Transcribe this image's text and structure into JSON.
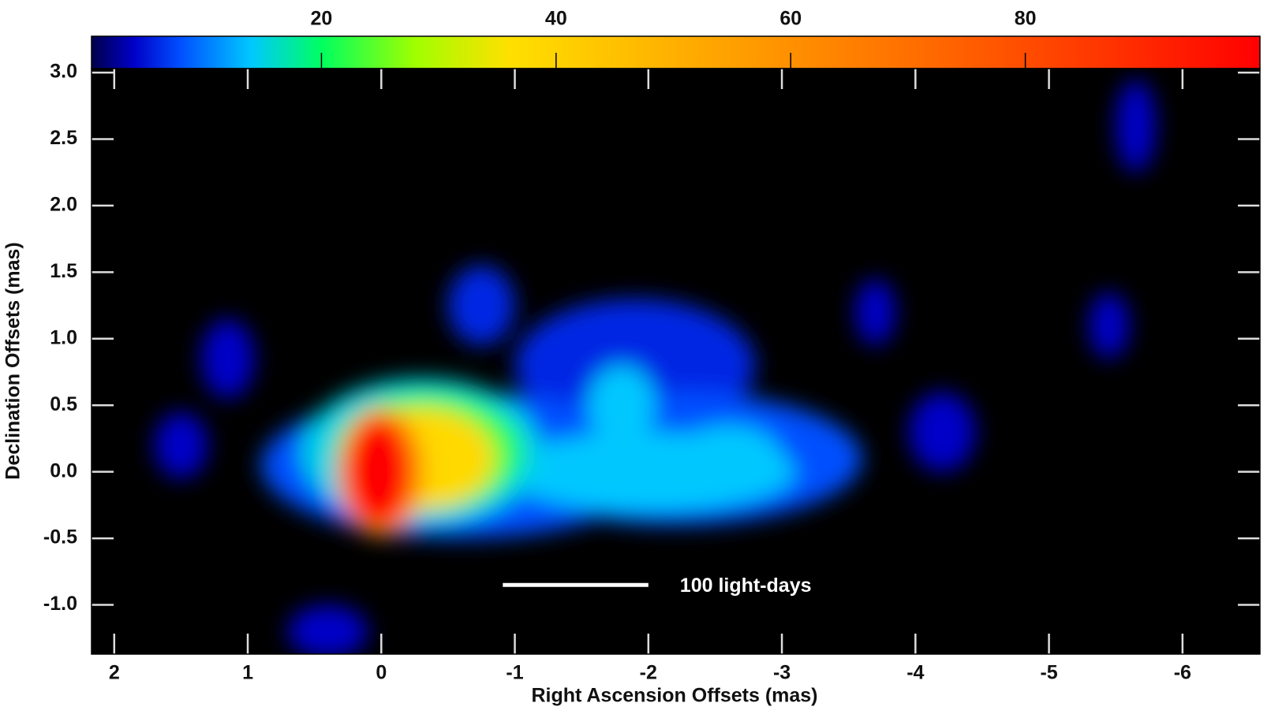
{
  "chart_data": {
    "type": "image",
    "x_label": "Right Ascension Offsets (mas)",
    "y_label": "Declination Offsets (mas)",
    "xlim": [
      2.17,
      -6.58
    ],
    "ylim": [
      -1.37,
      3.03
    ],
    "xticks": [
      2,
      1,
      0,
      -1,
      -2,
      -3,
      -4,
      -5,
      -6
    ],
    "yticks": [
      {
        "value": 3,
        "label": "3.0"
      },
      2.5,
      {
        "value": 2,
        "label": "2.0"
      },
      1.5,
      {
        "value": 1,
        "label": "1.0"
      },
      0.5,
      {
        "value": 0,
        "label": "0.0"
      },
      -0.5,
      {
        "value": -1,
        "label": "-1.0"
      }
    ],
    "clim": [
      0.4,
      100
    ],
    "cticks": [
      20,
      40,
      60,
      80
    ],
    "colormap": [
      {
        "value": 0.4,
        "color": "#00004a"
      },
      {
        "value": 4,
        "color": "#0000c8"
      },
      {
        "value": 8,
        "color": "#0050ff"
      },
      {
        "value": 14,
        "color": "#00c8ff"
      },
      {
        "value": 20,
        "color": "#00ff60"
      },
      {
        "value": 28,
        "color": "#a0ff00"
      },
      {
        "value": 36,
        "color": "#ffe000"
      },
      {
        "value": 50,
        "color": "#ffb000"
      },
      {
        "value": 70,
        "color": "#ff7000"
      },
      {
        "value": 88,
        "color": "#ff3000"
      },
      {
        "value": 100,
        "color": "#ff0000"
      }
    ],
    "components": [
      {
        "x": 1.15,
        "y": 0.85,
        "rx": 0.2,
        "ry": 0.3,
        "value": 4
      },
      {
        "x": 1.5,
        "y": 0.2,
        "rx": 0.2,
        "ry": 0.25,
        "value": 4
      },
      {
        "x": -4.2,
        "y": 0.3,
        "rx": 0.25,
        "ry": 0.3,
        "value": 4
      },
      {
        "x": -5.65,
        "y": 2.6,
        "rx": 0.15,
        "ry": 0.35,
        "value": 4
      },
      {
        "x": 0.4,
        "y": -1.2,
        "rx": 0.3,
        "ry": 0.2,
        "value": 4
      },
      {
        "x": -5.45,
        "y": 1.1,
        "rx": 0.15,
        "ry": 0.25,
        "value": 4
      },
      {
        "x": -3.7,
        "y": 1.2,
        "rx": 0.15,
        "ry": 0.25,
        "value": 4
      },
      {
        "x": -1.9,
        "y": 0.8,
        "rx": 0.9,
        "ry": 0.5,
        "value": 6
      },
      {
        "x": -0.75,
        "y": 1.25,
        "rx": 0.25,
        "ry": 0.3,
        "value": 6
      },
      {
        "x": -0.6,
        "y": 0.05,
        "rx": 1.5,
        "ry": 0.55,
        "value": 8
      },
      {
        "x": -2.2,
        "y": 0.1,
        "rx": 1.4,
        "ry": 0.5,
        "value": 8
      },
      {
        "x": -2.0,
        "y": 0.0,
        "rx": 1.1,
        "ry": 0.3,
        "value": 14
      },
      {
        "x": -1.8,
        "y": 0.5,
        "rx": 0.25,
        "ry": 0.3,
        "value": 14
      },
      {
        "x": -2.6,
        "y": 0.1,
        "rx": 0.4,
        "ry": 0.25,
        "value": 14
      },
      {
        "x": -0.3,
        "y": 0.15,
        "rx": 0.9,
        "ry": 0.55,
        "value": 15
      },
      {
        "x": -0.35,
        "y": 0.15,
        "rx": 0.7,
        "ry": 0.45,
        "value": 22
      },
      {
        "x": -0.3,
        "y": 0.1,
        "rx": 0.55,
        "ry": 0.38,
        "value": 38
      },
      {
        "x": 0.0,
        "y": 0.0,
        "rx": 0.33,
        "ry": 0.48,
        "value": 55
      },
      {
        "x": 0.02,
        "y": 0.0,
        "rx": 0.25,
        "ry": 0.42,
        "value": 100
      }
    ],
    "scale_bar": {
      "label": "100 light-days",
      "x": [
        -0.91,
        -2.0
      ],
      "y": -0.85
    }
  }
}
